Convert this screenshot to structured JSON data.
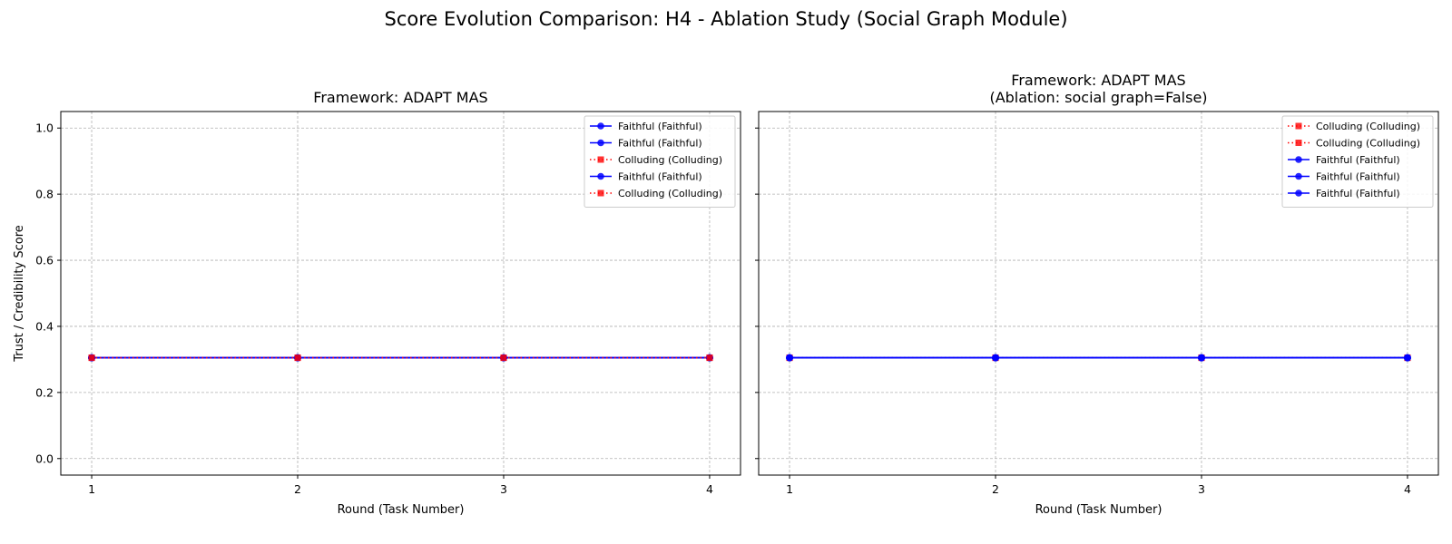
{
  "suptitle": "Score Evolution Comparison: H4 - Ablation Study (Social Graph Module)",
  "chart_data": [
    {
      "type": "line",
      "title": "Framework: ADAPT MAS",
      "xlabel": "Round (Task Number)",
      "ylabel": "Trust / Credibility Score",
      "x": [
        1,
        2,
        3,
        4
      ],
      "xticks": [
        "1",
        "2",
        "3",
        "4"
      ],
      "ylim": [
        -0.05,
        1.05
      ],
      "yticks": [
        "0.0",
        "0.2",
        "0.4",
        "0.6",
        "0.8",
        "1.0"
      ],
      "grid": true,
      "legend_position": "top-right",
      "series": [
        {
          "name": "Faithful (Faithful)",
          "values": [
            0.305,
            0.305,
            0.305,
            0.305
          ],
          "color": "#0000ff",
          "style": "solid",
          "marker": "circle"
        },
        {
          "name": "Faithful (Faithful)",
          "values": [
            0.305,
            0.305,
            0.305,
            0.305
          ],
          "color": "#0000ff",
          "style": "solid",
          "marker": "circle"
        },
        {
          "name": "Colluding (Colluding)",
          "values": [
            0.305,
            0.305,
            0.305,
            0.305
          ],
          "color": "#ff0000",
          "style": "dotted",
          "marker": "square"
        },
        {
          "name": "Faithful (Faithful)",
          "values": [
            0.305,
            0.305,
            0.305,
            0.305
          ],
          "color": "#0000ff",
          "style": "solid",
          "marker": "circle"
        },
        {
          "name": "Colluding (Colluding)",
          "values": [
            0.305,
            0.305,
            0.305,
            0.305
          ],
          "color": "#ff0000",
          "style": "dotted",
          "marker": "square"
        }
      ]
    },
    {
      "type": "line",
      "title": "Framework: ADAPT MAS\n(Ablation: social graph=False)",
      "xlabel": "Round (Task Number)",
      "ylabel": "",
      "x": [
        1,
        2,
        3,
        4
      ],
      "xticks": [
        "1",
        "2",
        "3",
        "4"
      ],
      "ylim": [
        -0.05,
        1.05
      ],
      "yticks": [],
      "grid": true,
      "legend_position": "top-right",
      "series": [
        {
          "name": "Colluding (Colluding)",
          "values": [
            0.305,
            0.305,
            0.305,
            0.305
          ],
          "color": "#ff0000",
          "style": "dotted",
          "marker": "square"
        },
        {
          "name": "Colluding (Colluding)",
          "values": [
            0.305,
            0.305,
            0.305,
            0.305
          ],
          "color": "#ff0000",
          "style": "dotted",
          "marker": "square"
        },
        {
          "name": "Faithful (Faithful)",
          "values": [
            0.305,
            0.305,
            0.305,
            0.305
          ],
          "color": "#0000ff",
          "style": "solid",
          "marker": "circle"
        },
        {
          "name": "Faithful (Faithful)",
          "values": [
            0.305,
            0.305,
            0.305,
            0.305
          ],
          "color": "#0000ff",
          "style": "solid",
          "marker": "circle"
        },
        {
          "name": "Faithful (Faithful)",
          "values": [
            0.305,
            0.305,
            0.305,
            0.305
          ],
          "color": "#0000ff",
          "style": "solid",
          "marker": "circle"
        }
      ]
    }
  ]
}
